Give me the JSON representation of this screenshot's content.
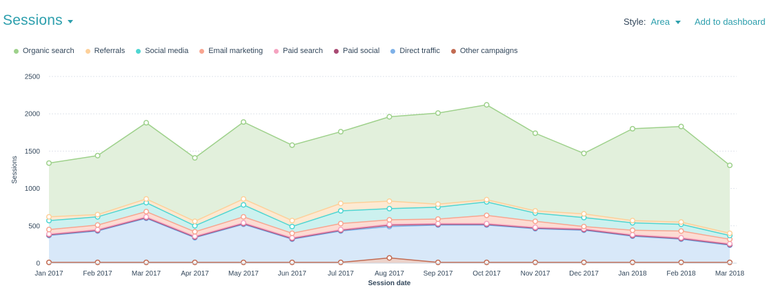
{
  "header": {
    "title": "Sessions",
    "style_label": "Style:",
    "style_value": "Area",
    "add_to_dashboard": "Add to dashboard"
  },
  "chart_data": {
    "type": "area",
    "stacked": true,
    "xlabel": "Session date",
    "ylabel": "Sessions",
    "ylim": [
      0,
      2500
    ],
    "yticks": [
      0,
      500,
      1000,
      1500,
      2000,
      2500
    ],
    "grid": true,
    "legend_position": "top-left",
    "categories": [
      "Jan 2017",
      "Feb 2017",
      "Mar 2017",
      "Apr 2017",
      "May 2017",
      "Jun 2017",
      "Jul 2017",
      "Aug 2017",
      "Sep 2017",
      "Oct 2017",
      "Nov 2017",
      "Dec 2017",
      "Jan 2018",
      "Feb 2018",
      "Mar 2018"
    ],
    "series": [
      {
        "name": "Organic search",
        "color": "#9ed18b",
        "fill": "#e2f0dc",
        "values": [
          720,
          790,
          1020,
          850,
          1030,
          1010,
          960,
          1130,
          1220,
          1270,
          1040,
          810,
          1230,
          1280,
          910
        ]
      },
      {
        "name": "Referrals",
        "color": "#fdd09a",
        "fill": "#fde9d2",
        "values": [
          50,
          30,
          50,
          60,
          80,
          80,
          100,
          100,
          40,
          30,
          30,
          50,
          30,
          30,
          30
        ]
      },
      {
        "name": "Social media",
        "color": "#4fd6d2",
        "fill": "#ccf1ef",
        "values": [
          120,
          110,
          120,
          80,
          160,
          90,
          170,
          150,
          160,
          180,
          110,
          120,
          100,
          90,
          50
        ]
      },
      {
        "name": "Email marketing",
        "color": "#f8a590",
        "fill": "#fcdcd3",
        "values": [
          60,
          60,
          70,
          60,
          80,
          60,
          80,
          60,
          60,
          110,
          80,
          30,
          60,
          90,
          60
        ]
      },
      {
        "name": "Paid search",
        "color": "#f5a3c0",
        "fill": "#f9dbe6",
        "values": [
          10,
          10,
          10,
          10,
          10,
          10,
          10,
          10,
          10,
          10,
          10,
          10,
          10,
          10,
          10
        ]
      },
      {
        "name": "Paid social",
        "color": "#a94a73",
        "fill": "#e8d2dc",
        "values": [
          10,
          10,
          10,
          10,
          10,
          10,
          10,
          20,
          10,
          10,
          10,
          10,
          10,
          10,
          10
        ]
      },
      {
        "name": "Direct traffic",
        "color": "#7eb1e8",
        "fill": "#d8e8f9",
        "values": [
          360,
          420,
          590,
          330,
          510,
          310,
          420,
          420,
          500,
          500,
          450,
          430,
          350,
          310,
          230
        ]
      },
      {
        "name": "Other campaigns",
        "color": "#c26b52",
        "fill": "#ecd2ca",
        "values": [
          10,
          10,
          10,
          10,
          10,
          10,
          10,
          70,
          10,
          10,
          10,
          10,
          10,
          10,
          10
        ]
      }
    ]
  }
}
